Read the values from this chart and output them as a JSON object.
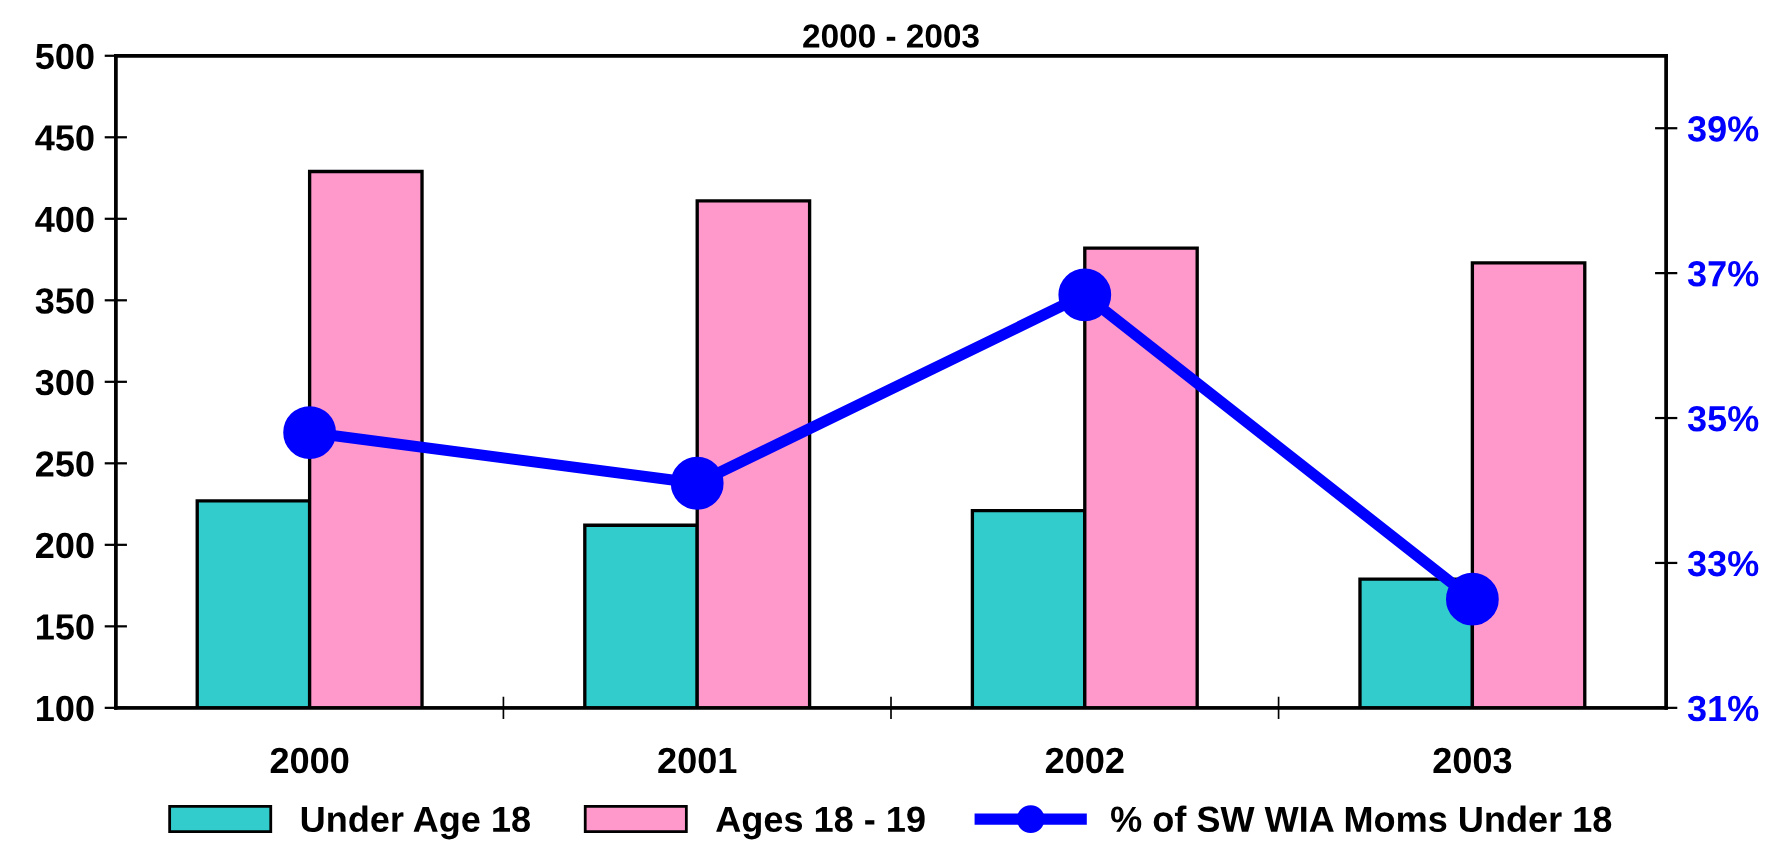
{
  "chart_data": {
    "type": "bar",
    "title": "2000 - 2003",
    "categories": [
      "2000",
      "2001",
      "2002",
      "2003"
    ],
    "series": [
      {
        "name": "Under Age 18",
        "color": "#33cccc",
        "values": [
          227,
          212,
          221,
          179
        ]
      },
      {
        "name": "Ages 18 - 19",
        "color": "#ff99cc",
        "values": [
          429,
          411,
          382,
          373
        ]
      },
      {
        "name": "% of SW WIA Moms Under 18",
        "type": "line",
        "axis": "y2",
        "color": "#0000ff",
        "marker": "circle",
        "values": [
          34.8,
          34.1,
          36.7,
          32.5
        ]
      }
    ],
    "ylim": [
      100,
      500
    ],
    "yticks": [
      100,
      150,
      200,
      250,
      300,
      350,
      400,
      450,
      500
    ],
    "y2lim": [
      31,
      40
    ],
    "y2ticks": [
      {
        "value": 31,
        "label": "31%"
      },
      {
        "value": 33,
        "label": "33%"
      },
      {
        "value": 35,
        "label": "35%"
      },
      {
        "value": 37,
        "label": "37%"
      },
      {
        "value": 39,
        "label": "39%"
      }
    ],
    "grid": false,
    "legend": "bottom"
  }
}
